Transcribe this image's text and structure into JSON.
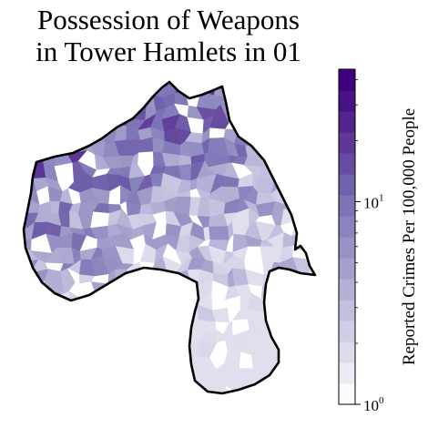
{
  "title_lines": [
    "Possession of Weapons",
    "in Tower Hamlets in 01"
  ],
  "colorbar": {
    "label": "Reported Crimes Per 100,000 People",
    "scale": "log",
    "range": [
      1,
      45
    ],
    "ticks": [
      {
        "base": "10",
        "exp": "0",
        "value": 1
      },
      {
        "base": "10",
        "exp": "1",
        "value": 10
      }
    ],
    "colors": [
      "#fcfbfd",
      "#dadaeb",
      "#bcbddc",
      "#9e9ac8",
      "#807dba",
      "#6a51a3",
      "#54278f",
      "#3f007d"
    ]
  },
  "map": {
    "area_name": "Tower Hamlets",
    "outline_color": "#000000",
    "no_data_color": "#ffffff"
  }
}
